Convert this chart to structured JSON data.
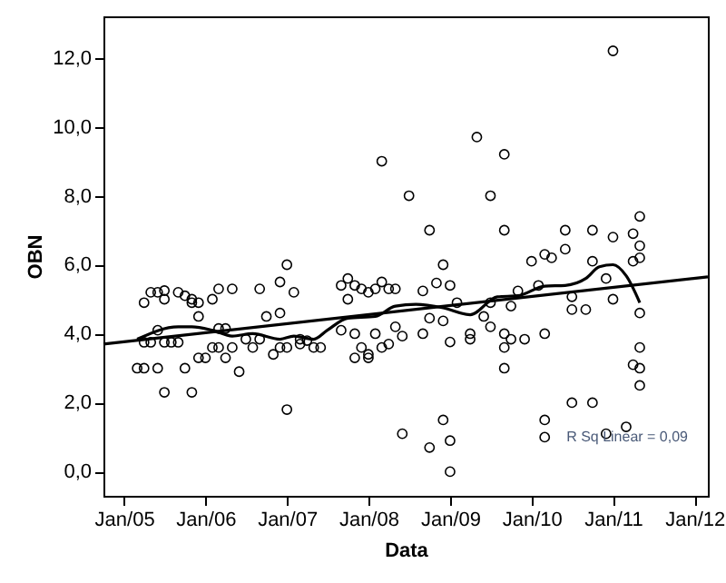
{
  "chart_data": {
    "type": "scatter",
    "xlabel": "Data",
    "ylabel": "OBN",
    "xlim": [
      "2004-10",
      "2012-03"
    ],
    "xticks": [
      {
        "value": "2005-01",
        "label": "Jan/05"
      },
      {
        "value": "2006-01",
        "label": "Jan/06"
      },
      {
        "value": "2007-01",
        "label": "Jan/07"
      },
      {
        "value": "2008-01",
        "label": "Jan/08"
      },
      {
        "value": "2009-01",
        "label": "Jan/09"
      },
      {
        "value": "2010-01",
        "label": "Jan/10"
      },
      {
        "value": "2011-01",
        "label": "Jan/11"
      },
      {
        "value": "2012-01",
        "label": "Jan/12"
      }
    ],
    "ylim": [
      -0.7,
      13.2
    ],
    "yticks": [
      {
        "value": 0,
        "label": "0,0"
      },
      {
        "value": 2,
        "label": "2,0"
      },
      {
        "value": 4,
        "label": "4,0"
      },
      {
        "value": 6,
        "label": "6,0"
      },
      {
        "value": 8,
        "label": "8,0"
      },
      {
        "value": 10,
        "label": "10,0"
      },
      {
        "value": 12,
        "label": "12,0"
      }
    ],
    "grid": false,
    "annotations": [
      "R Sq Linear = 0,09"
    ],
    "series": [
      {
        "type": "scatter",
        "color": "#000000",
        "marker": "circle",
        "x": [
          "2005-04",
          "2005-05",
          "2005-06",
          "2005-07",
          "2005-07",
          "2005-09",
          "2005-10",
          "2005-11",
          "2005-11",
          "2005-12",
          "2005-04",
          "2005-05",
          "2005-06",
          "2005-07",
          "2005-08",
          "2005-09",
          "2005-03",
          "2005-04",
          "2005-06",
          "2005-10",
          "2005-07",
          "2005-11",
          "2005-12",
          "2005-12",
          "2006-01",
          "2006-02",
          "2006-03",
          "2006-05",
          "2006-02",
          "2006-03",
          "2006-04",
          "2006-05",
          "2006-03",
          "2006-04",
          "2006-06",
          "2006-07",
          "2006-08",
          "2006-09",
          "2006-09",
          "2006-10",
          "2006-11",
          "2006-12",
          "2006-12",
          "2007-01",
          "2007-02",
          "2007-01",
          "2006-12",
          "2007-01",
          "2007-03",
          "2007-03",
          "2007-04",
          "2007-05",
          "2007-06",
          "2007-09",
          "2007-10",
          "2007-10",
          "2007-11",
          "2007-12",
          "2008-01",
          "2008-02",
          "2008-03",
          "2008-04",
          "2008-05",
          "2007-11",
          "2008-01",
          "2007-09",
          "2007-11",
          "2007-12",
          "2008-01",
          "2008-02",
          "2008-03",
          "2008-04",
          "2008-03",
          "2008-07",
          "2009-05",
          "2009-09",
          "2009-07",
          "2011-01",
          "2008-10",
          "2009-09",
          "2008-12",
          "2010-06",
          "2010-10",
          "2011-05",
          "2011-04",
          "2011-01",
          "2011-05",
          "2011-05",
          "2008-06",
          "2008-10",
          "2008-12",
          "2009-01",
          "2009-01",
          "2010-03",
          "2010-03",
          "2010-07",
          "2010-10",
          "2010-12",
          "2011-03",
          "2011-05",
          "2011-04",
          "2011-05",
          "2011-05",
          "2009-09",
          "2011-05",
          "2009-09",
          "2009-09",
          "2010-03",
          "2009-12",
          "2010-01",
          "2010-03",
          "2010-04",
          "2010-06",
          "2010-02",
          "2010-07",
          "2010-07",
          "2010-09",
          "2010-12",
          "2011-01",
          "2011-04",
          "2010-10",
          "2008-09",
          "2008-11",
          "2009-01",
          "2008-10",
          "2008-12",
          "2009-02",
          "2008-05",
          "2008-06",
          "2008-09",
          "2009-01",
          "2009-04",
          "2009-04",
          "2009-07",
          "2009-10",
          "2009-11",
          "2009-06",
          "2009-07",
          "2009-10"
        ],
        "values": [
          4.9,
          5.2,
          5.2,
          5.25,
          5.0,
          5.2,
          5.1,
          5.0,
          4.9,
          4.9,
          3.75,
          3.75,
          4.1,
          3.75,
          3.75,
          3.75,
          3.0,
          3.0,
          3.0,
          3.0,
          2.3,
          2.3,
          4.5,
          3.3,
          3.3,
          5.0,
          5.3,
          5.3,
          3.6,
          3.6,
          3.3,
          3.6,
          4.15,
          4.15,
          2.9,
          3.84,
          3.6,
          3.84,
          5.3,
          4.5,
          3.4,
          5.5,
          4.6,
          6.0,
          5.2,
          1.8,
          3.6,
          3.6,
          3.84,
          3.7,
          3.8,
          3.6,
          3.6,
          5.4,
          5.6,
          5.0,
          5.4,
          5.3,
          5.2,
          5.3,
          5.5,
          5.3,
          5.3,
          3.3,
          3.3,
          4.1,
          4.0,
          3.6,
          3.4,
          4.0,
          3.6,
          3.7,
          9.0,
          8.0,
          9.7,
          9.2,
          8.0,
          12.2,
          7.0,
          7.0,
          6.0,
          7.0,
          7.0,
          7.4,
          6.9,
          6.8,
          6.55,
          6.2,
          1.1,
          0.7,
          1.5,
          0.9,
          0.0,
          1.0,
          1.5,
          2.0,
          2.0,
          1.1,
          1.3,
          3.6,
          3.1,
          3.0,
          2.5,
          3.0,
          4.6,
          3.6,
          4.0,
          4.0,
          3.84,
          6.1,
          6.3,
          6.2,
          6.45,
          5.4,
          5.07,
          4.7,
          4.7,
          5.6,
          5.0,
          6.1,
          6.1,
          5.24,
          5.47,
          5.4,
          4.45,
          4.37,
          4.9,
          4.2,
          3.93,
          4.0,
          3.76,
          3.84,
          4.0,
          4.9,
          4.8,
          5.24,
          4.5,
          4.2,
          3.84
        ]
      },
      {
        "type": "line",
        "color": "#000000",
        "marker": "none",
        "x": [
          "2004-10",
          "2012-03"
        ],
        "values": [
          3.7,
          5.65
        ]
      },
      {
        "type": "line",
        "color": "#000000",
        "marker": "none",
        "x": [
          "2005-03",
          "2005-09",
          "2005-11",
          "2006-02",
          "2006-05",
          "2006-08",
          "2006-12",
          "2007-02",
          "2007-05",
          "2007-07",
          "2007-10",
          "2008-02",
          "2008-05",
          "2008-08",
          "2008-12",
          "2009-04",
          "2009-08",
          "2009-11",
          "2010-03",
          "2010-06",
          "2010-09",
          "2010-11",
          "2011-01",
          "2011-03",
          "2011-05"
        ],
        "values": [
          3.84,
          4.2,
          4.2,
          4.1,
          3.93,
          4.0,
          3.84,
          3.93,
          3.84,
          4.1,
          4.45,
          4.5,
          4.8,
          4.85,
          4.75,
          4.55,
          5.07,
          5.1,
          5.38,
          5.4,
          5.6,
          5.94,
          6.0,
          5.68,
          4.9
        ]
      }
    ]
  }
}
